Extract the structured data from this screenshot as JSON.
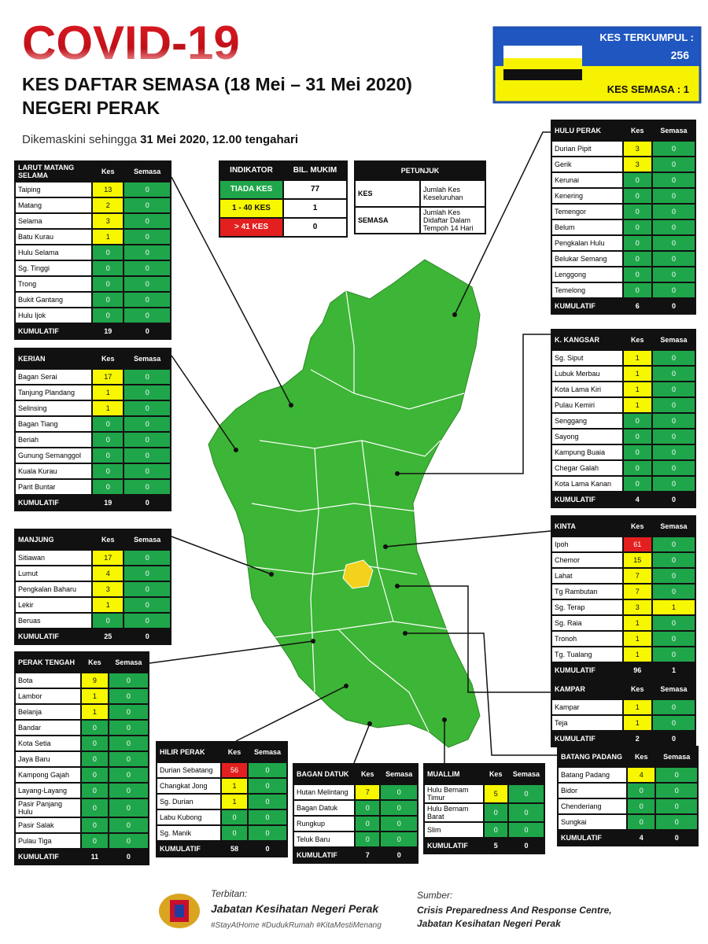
{
  "header": {
    "title": "COVID-19",
    "subtitle": "KES DAFTAR SEMASA (18 Mei – 31 Mei 2020)",
    "state": "NEGERI PERAK",
    "updated_prefix": "Dikemaskini sehingga",
    "updated_date": "31 Mei 2020, 12.00 tengahari"
  },
  "summary": {
    "cumulative_label": "KES TERKUMPUL :",
    "cumulative": 256,
    "active_label": "KES SEMASA :",
    "active": 1
  },
  "indicator_table": {
    "headers": [
      "INDIKATOR",
      "BIL. MUKIM"
    ],
    "rows": [
      {
        "label": "TIADA KES",
        "count": 77,
        "range": [
          0,
          0
        ],
        "color": "#1fa64a"
      },
      {
        "label": "1 - 40 KES",
        "count": 1,
        "range": [
          1,
          40
        ],
        "color": "#f7f700"
      },
      {
        "label": "> 41 KES",
        "count": 0,
        "range": [
          41,
          null
        ],
        "color": "#e3201f"
      }
    ]
  },
  "legend_table": {
    "title": "PETUNJUK",
    "rows": [
      [
        "KES",
        "Jumlah Kes Keseluruhan"
      ],
      [
        "SEMASA",
        "Jumlah Kes Didaftar Dalam Tempoh 14 Hari"
      ]
    ]
  },
  "districts": [
    {
      "name": "LARUT MATANG SELAMA",
      "headers": [
        "Kes",
        "Semasa"
      ],
      "rows": [
        [
          "Taiping",
          13,
          0
        ],
        [
          "Matang",
          2,
          0
        ],
        [
          "Selama",
          3,
          0
        ],
        [
          "Batu Kurau",
          1,
          0
        ],
        [
          "Hulu Selama",
          0,
          0
        ],
        [
          "Sg. Tinggi",
          0,
          0
        ],
        [
          "Trong",
          0,
          0
        ],
        [
          "Bukit Gantang",
          0,
          0
        ],
        [
          "Hulu Ijok",
          0,
          0
        ]
      ],
      "total": [
        "KUMULATIF",
        19,
        0
      ]
    },
    {
      "name": "KERIAN",
      "headers": [
        "Kes",
        "Semasa"
      ],
      "rows": [
        [
          "Bagan Serai",
          17,
          0
        ],
        [
          "Tanjung Plandang",
          1,
          0
        ],
        [
          "Selinsing",
          1,
          0
        ],
        [
          "Bagan Tiang",
          0,
          0
        ],
        [
          "Beriah",
          0,
          0
        ],
        [
          "Gunung Semanggol",
          0,
          0
        ],
        [
          "Kuala Kurau",
          0,
          0
        ],
        [
          "Parit Buntar",
          0,
          0
        ]
      ],
      "total": [
        "KUMULATIF",
        19,
        0
      ]
    },
    {
      "name": "MANJUNG",
      "headers": [
        "Kes",
        "Semasa"
      ],
      "rows": [
        [
          "Sitiawan",
          17,
          0
        ],
        [
          "Lumut",
          4,
          0
        ],
        [
          "Pengkalan Baharu",
          3,
          0
        ],
        [
          "Lekir",
          1,
          0
        ],
        [
          "Beruas",
          0,
          0
        ]
      ],
      "total": [
        "KUMULATIF",
        25,
        0
      ]
    },
    {
      "name": "PERAK TENGAH",
      "headers": [
        "Kes",
        "Semasa"
      ],
      "rows": [
        [
          "Bota",
          9,
          0
        ],
        [
          "Lambor",
          1,
          0
        ],
        [
          "Belanja",
          1,
          0
        ],
        [
          "Bandar",
          0,
          0
        ],
        [
          "Kota Setia",
          0,
          0
        ],
        [
          "Jaya Baru",
          0,
          0
        ],
        [
          "Kampong Gajah",
          0,
          0
        ],
        [
          "Layang-Layang",
          0,
          0
        ],
        [
          "Pasir Panjang Hulu",
          0,
          0
        ],
        [
          "Pasir Salak",
          0,
          0
        ],
        [
          "Pulau Tiga",
          0,
          0
        ]
      ],
      "total": [
        "KUMULATIF",
        11,
        0
      ]
    },
    {
      "name": "HILIR PERAK",
      "headers": [
        "Kes",
        "Semasa"
      ],
      "rows": [
        [
          "Durian Sebatang",
          56,
          0
        ],
        [
          "Changkat Jong",
          1,
          0
        ],
        [
          "Sg. Durian",
          1,
          0
        ],
        [
          "Labu Kubong",
          0,
          0
        ],
        [
          "Sg. Manik",
          0,
          0
        ]
      ],
      "total": [
        "KUMULATIF",
        58,
        0
      ]
    },
    {
      "name": "BAGAN DATUK",
      "headers": [
        "Kes",
        "Semasa"
      ],
      "rows": [
        [
          "Hutan Melintang",
          7,
          0
        ],
        [
          "Bagan Datuk",
          0,
          0
        ],
        [
          "Rungkup",
          0,
          0
        ],
        [
          "Teluk Baru",
          0,
          0
        ]
      ],
      "total": [
        "KUMULATIF",
        7,
        0
      ]
    },
    {
      "name": "MUALLIM",
      "headers": [
        "Kes",
        "Semasa"
      ],
      "rows": [
        [
          "Hulu Bernam Timur",
          5,
          0
        ],
        [
          "Hulu Bernam Barat",
          0,
          0
        ],
        [
          "Slim",
          0,
          0
        ]
      ],
      "total": [
        "KUMULATIF",
        5,
        0
      ]
    },
    {
      "name": "BATANG PADANG",
      "headers": [
        "Kes",
        "Semasa"
      ],
      "rows": [
        [
          "Batang Padang",
          4,
          0
        ],
        [
          "Bidor",
          0,
          0
        ],
        [
          "Chenderiang",
          0,
          0
        ],
        [
          "Sungkai",
          0,
          0
        ]
      ],
      "total": [
        "KUMULATIF",
        4,
        0
      ]
    },
    {
      "name": "HULU PERAK",
      "headers": [
        "Kes",
        "Semasa"
      ],
      "rows": [
        [
          "Durian Pipit",
          3,
          0
        ],
        [
          "Gerik",
          3,
          0
        ],
        [
          "Kerunai",
          0,
          0
        ],
        [
          "Kenering",
          0,
          0
        ],
        [
          "Temengor",
          0,
          0
        ],
        [
          "Belum",
          0,
          0
        ],
        [
          "Pengkalan Hulu",
          0,
          0
        ],
        [
          "Belukar Semang",
          0,
          0
        ],
        [
          "Lenggong",
          0,
          0
        ],
        [
          "Temelong",
          0,
          0
        ]
      ],
      "total": [
        "KUMULATIF",
        6,
        0
      ]
    },
    {
      "name": "K. KANGSAR",
      "headers": [
        "Kes",
        "Semasa"
      ],
      "rows": [
        [
          "Sg. Siput",
          1,
          0
        ],
        [
          "Lubuk Merbau",
          1,
          0
        ],
        [
          "Kota Lama Kiri",
          1,
          0
        ],
        [
          "Pulau Kemiri",
          1,
          0
        ],
        [
          "Senggang",
          0,
          0
        ],
        [
          "Sayong",
          0,
          0
        ],
        [
          "Kampung Buaia",
          0,
          0
        ],
        [
          "Chegar Galah",
          0,
          0
        ],
        [
          "Kota Lama Kanan",
          0,
          0
        ]
      ],
      "total": [
        "KUMULATIF",
        4,
        0
      ]
    },
    {
      "name": "KINTA",
      "headers": [
        "Kes",
        "Semasa"
      ],
      "rows": [
        [
          "Ipoh",
          61,
          0
        ],
        [
          "Chemor",
          15,
          0
        ],
        [
          "Lahat",
          7,
          0
        ],
        [
          "Tg Rambutan",
          7,
          0
        ],
        [
          "Sg. Terap",
          3,
          1
        ],
        [
          "Sg. Raia",
          1,
          0
        ],
        [
          "Tronoh",
          1,
          0
        ],
        [
          "Tg. Tualang",
          1,
          0
        ]
      ],
      "total": [
        "KUMULATIF",
        96,
        1
      ]
    },
    {
      "name": "KAMPAR",
      "headers": [
        "Kes",
        "Semasa"
      ],
      "rows": [
        [
          "Kampar",
          1,
          0
        ],
        [
          "Teja",
          1,
          0
        ]
      ],
      "total": [
        "KUMULATIF",
        2,
        0
      ]
    }
  ],
  "footer": {
    "publisher_label": "Terbitan:",
    "publisher": "Jabatan Kesihatan Negeri Perak",
    "hashtags": "#StayAtHome #DudukRumah #KitaMestiMenang",
    "source_label": "Sumber:",
    "source": [
      "Crisis Preparedness And Response Centre,",
      "Jabatan Kesihatan Negeri Perak"
    ]
  }
}
